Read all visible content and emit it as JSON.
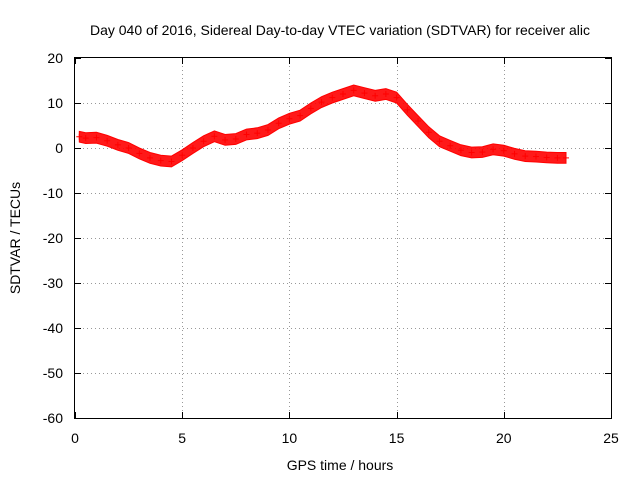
{
  "chart_data": {
    "type": "scatter",
    "title": "Day 040 of 2016, Sidereal Day-to-day VTEC variation (SDTVAR) for receiver alic",
    "xlabel": "GPS time / hours",
    "ylabel": "SDTVAR / TECUs",
    "xlim": [
      0,
      25
    ],
    "ylim": [
      -60,
      20
    ],
    "x_ticks": [
      0,
      5,
      10,
      15,
      20,
      25
    ],
    "y_ticks": [
      20,
      10,
      0,
      -10,
      -20,
      -30,
      -40,
      -50,
      -60
    ],
    "x_tick_labels": [
      "0",
      "5",
      "10",
      "15",
      "20",
      "25"
    ],
    "y_tick_labels": [
      "20",
      "10",
      "0",
      "-10",
      "-20",
      "-30",
      "-40",
      "-50",
      "-60"
    ],
    "grid": true,
    "series_color": "#ff0000",
    "series": [
      {
        "name": "SDTVAR",
        "band_halfwidth": 1.2,
        "points": [
          [
            0.2,
            2.5
          ],
          [
            0.5,
            2.2
          ],
          [
            1.0,
            2.3
          ],
          [
            1.5,
            1.6
          ],
          [
            2.0,
            0.7
          ],
          [
            2.5,
            0.0
          ],
          [
            3.0,
            -1.2
          ],
          [
            3.5,
            -2.2
          ],
          [
            4.0,
            -2.8
          ],
          [
            4.5,
            -3.0
          ],
          [
            5.0,
            -1.6
          ],
          [
            5.5,
            0.0
          ],
          [
            6.0,
            1.5
          ],
          [
            6.5,
            2.6
          ],
          [
            7.0,
            1.8
          ],
          [
            7.5,
            2.0
          ],
          [
            8.0,
            3.0
          ],
          [
            8.5,
            3.3
          ],
          [
            9.0,
            4.0
          ],
          [
            9.5,
            5.5
          ],
          [
            10.0,
            6.5
          ],
          [
            10.5,
            7.2
          ],
          [
            11.0,
            8.8
          ],
          [
            11.5,
            10.2
          ],
          [
            12.0,
            11.2
          ],
          [
            12.5,
            12.0
          ],
          [
            13.0,
            12.8
          ],
          [
            13.5,
            12.2
          ],
          [
            14.0,
            11.6
          ],
          [
            14.5,
            12.0
          ],
          [
            15.0,
            11.2
          ],
          [
            15.5,
            8.5
          ],
          [
            16.0,
            6.0
          ],
          [
            16.5,
            3.5
          ],
          [
            17.0,
            1.5
          ],
          [
            17.5,
            0.5
          ],
          [
            18.0,
            -0.5
          ],
          [
            18.5,
            -1.0
          ],
          [
            19.0,
            -0.9
          ],
          [
            19.5,
            -0.3
          ],
          [
            20.0,
            -0.6
          ],
          [
            20.5,
            -1.3
          ],
          [
            21.0,
            -1.8
          ],
          [
            21.5,
            -1.9
          ],
          [
            22.0,
            -2.1
          ],
          [
            22.5,
            -2.2
          ],
          [
            22.9,
            -2.2
          ]
        ]
      }
    ]
  }
}
